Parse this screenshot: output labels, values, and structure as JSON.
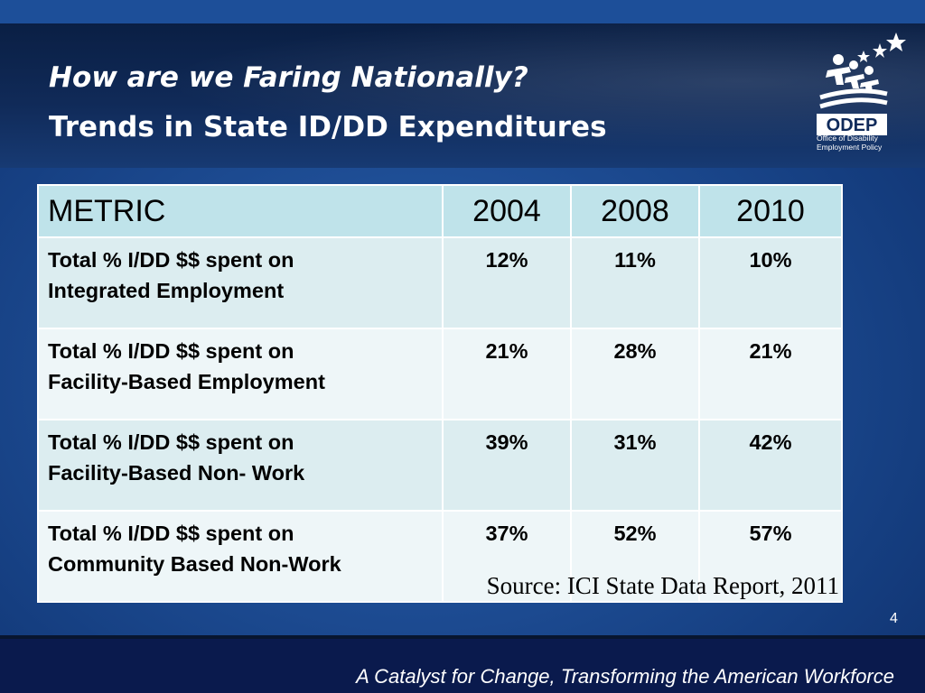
{
  "title": {
    "line1": "How are we Faring Nationally?",
    "line2": "Trends in State ID/DD Expenditures"
  },
  "logo": {
    "name": "ODEP",
    "subtitle_line1": "Office of Disability",
    "subtitle_line2": "Employment Policy"
  },
  "table": {
    "headers": [
      "METRIC",
      "2004",
      "2008",
      "2010"
    ],
    "rows": [
      {
        "metric_line1": "Total % I/DD $$ spent on",
        "metric_line2": "Integrated Employment",
        "values": [
          "12%",
          "11%",
          "10%"
        ]
      },
      {
        "metric_line1": "Total % I/DD $$ spent on",
        "metric_line2": "Facility-Based Employment",
        "values": [
          "21%",
          "28%",
          "21%"
        ]
      },
      {
        "metric_line1": "Total % I/DD $$ spent on",
        "metric_line2": "Facility-Based Non- Work",
        "values": [
          "39%",
          "31%",
          "42%"
        ]
      },
      {
        "metric_line1": "Total % I/DD $$ spent on",
        "metric_line2": "Community Based Non-Work",
        "values": [
          "37%",
          "52%",
          "57%"
        ]
      }
    ]
  },
  "source": "Source:  ICI State Data Report, 2011",
  "page_number": "4",
  "footer": {
    "tagline": "A Catalyst for Change, Transforming the American Workforce"
  },
  "colors": {
    "background": "#1f4f97",
    "header_band": "#102a58",
    "table_header": "#bfe3ea",
    "table_row_odd": "#dcedf0",
    "table_row_even": "#eef6f8",
    "footer": "#0a1a4d"
  }
}
